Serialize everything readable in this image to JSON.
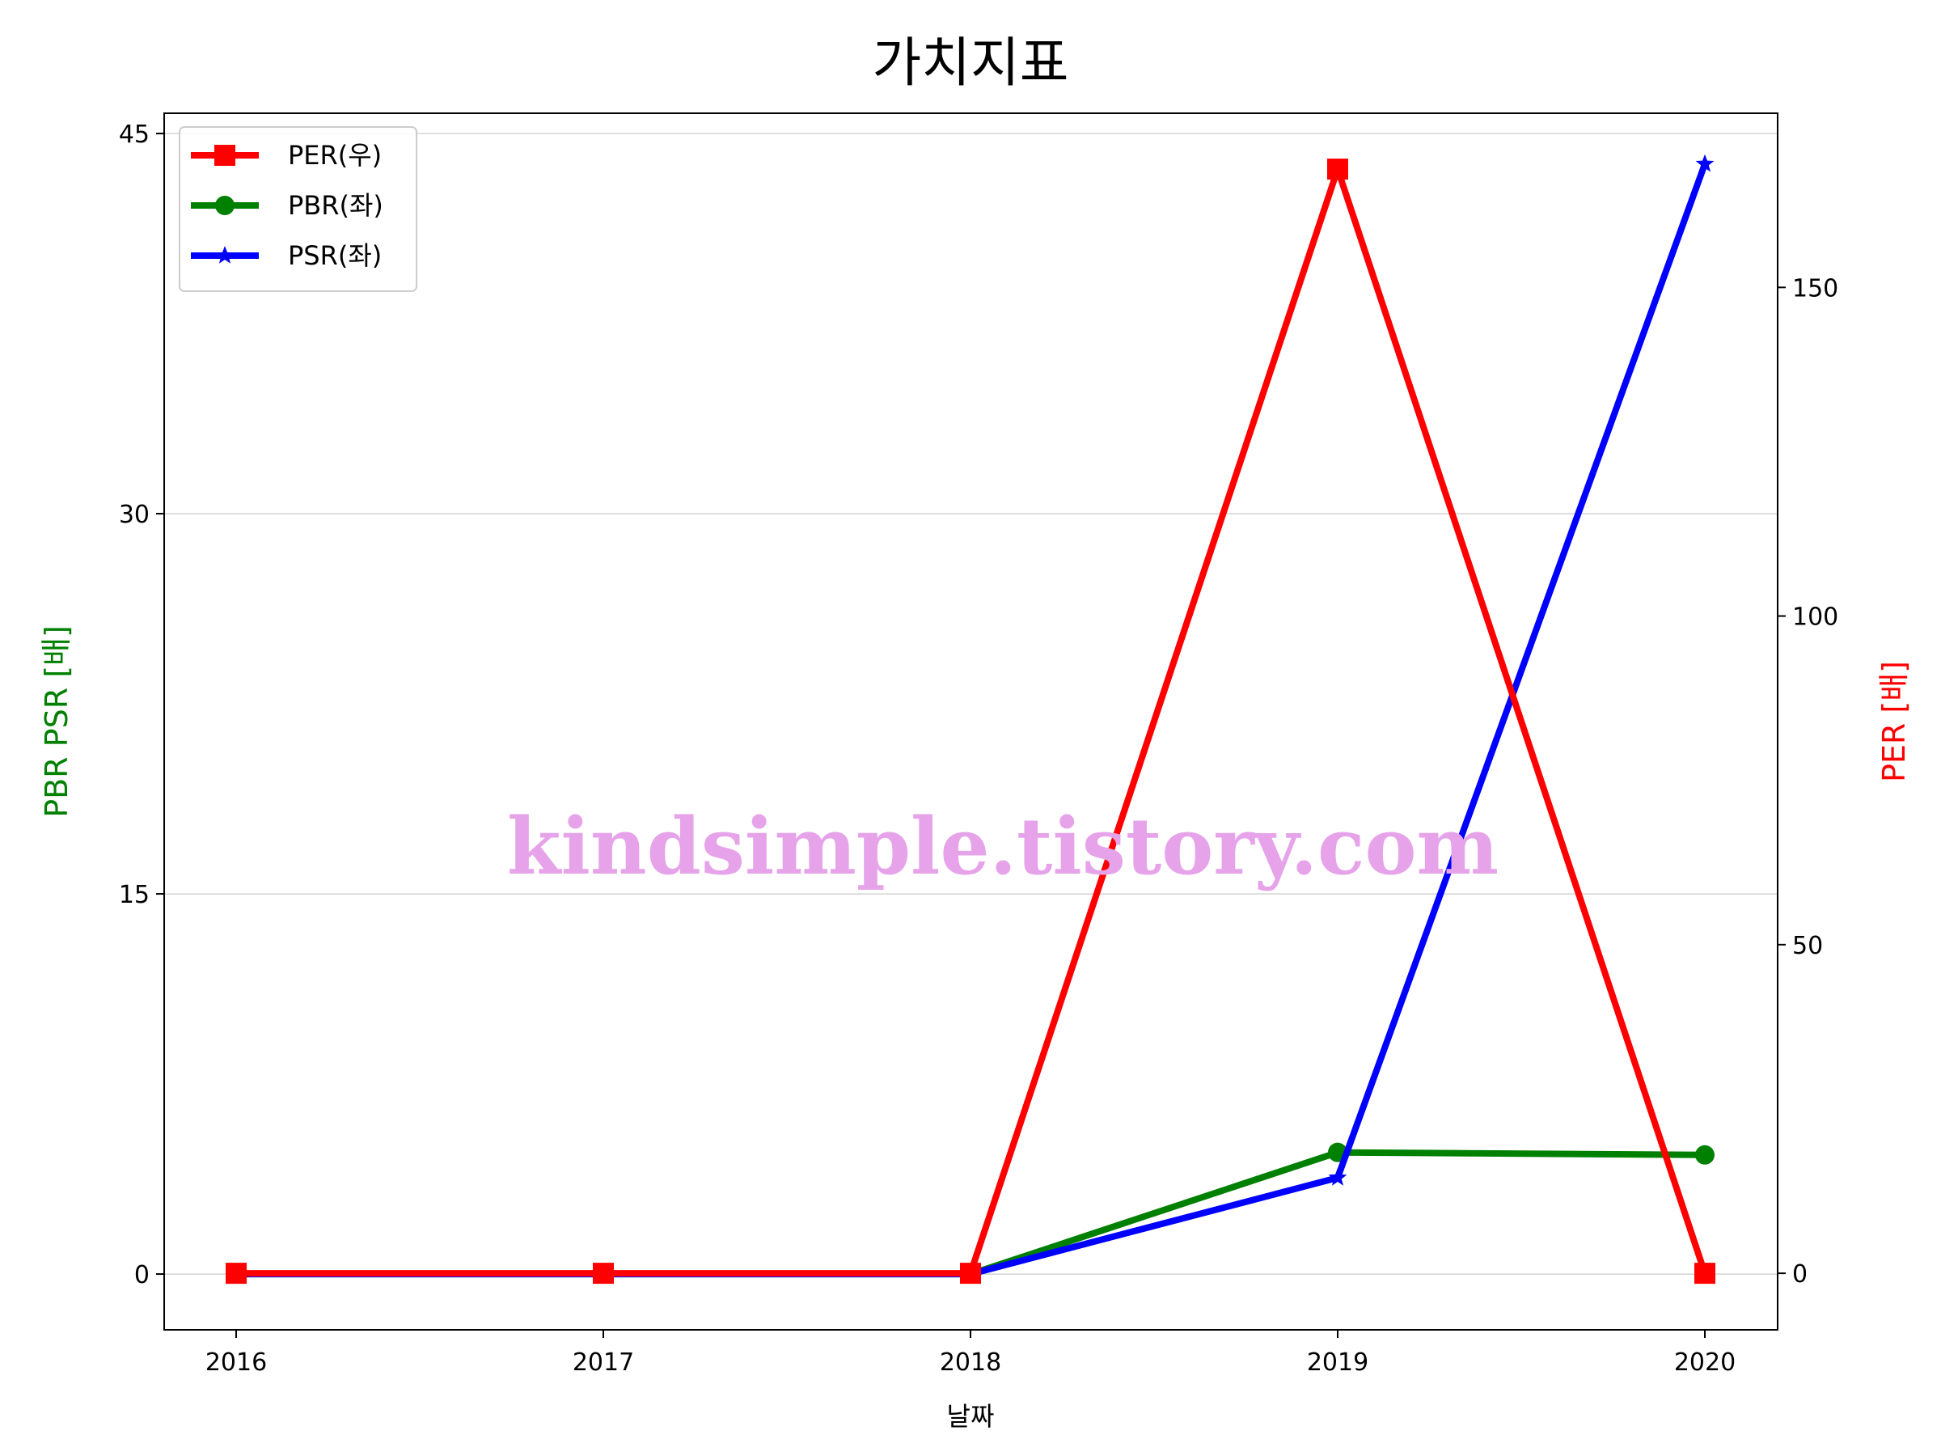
{
  "chart_data": {
    "type": "line",
    "title": "가치지표",
    "xlabel": "날짜",
    "ylabel_left": "PBR PSR [배]",
    "ylabel_right": "PER [배]",
    "categories": [
      "2016",
      "2017",
      "2018",
      "2019",
      "2020"
    ],
    "left_axis": {
      "ylim": [
        -2.2,
        45.8
      ],
      "ticks": [
        0,
        15,
        30,
        45
      ],
      "tick_labels": [
        "0",
        "15",
        "30",
        "45"
      ],
      "color": "#008000"
    },
    "right_axis": {
      "ylim": [
        -8.6,
        176.5
      ],
      "ticks": [
        0,
        50,
        100,
        150
      ],
      "tick_labels": [
        "0",
        "50",
        "100",
        "150"
      ],
      "color": "#ff0000"
    },
    "grid": true,
    "legend_position": "top-left",
    "series": [
      {
        "name": "PER(우)",
        "axis": "right",
        "color": "#ff0000",
        "marker": "square",
        "values": [
          0,
          0,
          0,
          168,
          0
        ]
      },
      {
        "name": "PBR(좌)",
        "axis": "left",
        "color": "#008000",
        "marker": "circle",
        "values": [
          0,
          0,
          0,
          4.8,
          4.7
        ]
      },
      {
        "name": "PSR(좌)",
        "axis": "left",
        "color": "#0000ff",
        "marker": "star",
        "values": [
          0,
          0,
          0,
          3.8,
          43.8
        ]
      }
    ]
  },
  "watermark": {
    "text": "kindsimple.tistory.com",
    "color": "#e6a3ea"
  }
}
